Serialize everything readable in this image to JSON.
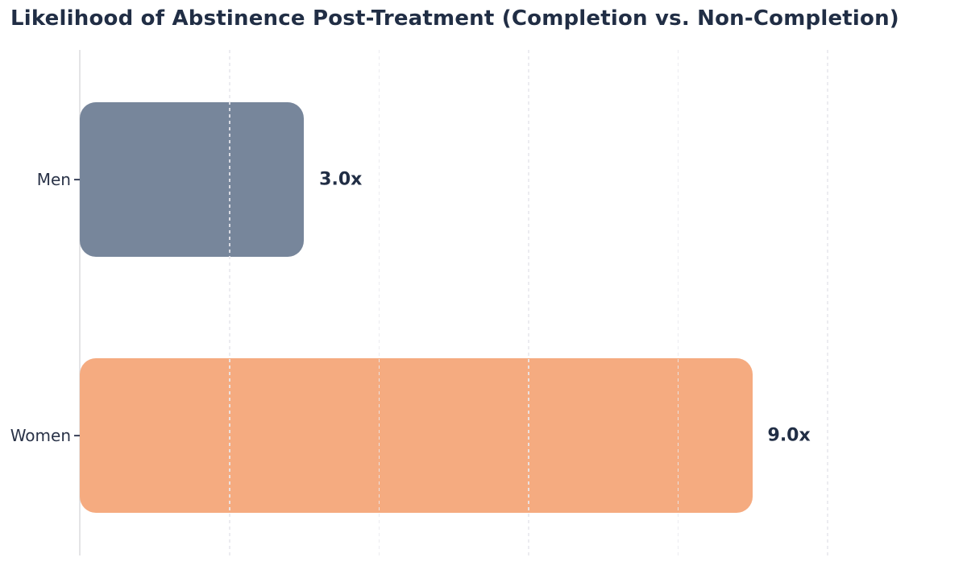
{
  "chart_data": {
    "type": "bar",
    "orientation": "horizontal",
    "title": "Likelihood of Abstinence Post-Treatment (Completion vs. Non-Completion)",
    "categories": [
      "Men",
      "Women"
    ],
    "values": [
      3.0,
      9.0
    ],
    "value_labels": [
      "3.0x",
      "9.0x"
    ],
    "bar_colors": [
      "#77869b",
      "#f5ab80"
    ],
    "xlabel": "",
    "ylabel": "",
    "xlim": [
      0,
      11.82
    ],
    "gridline_values": [
      2,
      4,
      6,
      8,
      10
    ],
    "grid": "vertical-dashed",
    "legend": "none"
  },
  "colors": {
    "background": "#ffffff",
    "title_text": "#212e45",
    "category_text": "#2a3348",
    "value_text": "#212e45",
    "axis_line": "#e4e4e6",
    "gridline": "#e9e9ee",
    "tick": "#39425a",
    "men_bar": "#77869b",
    "women_bar": "#f5ab80"
  }
}
